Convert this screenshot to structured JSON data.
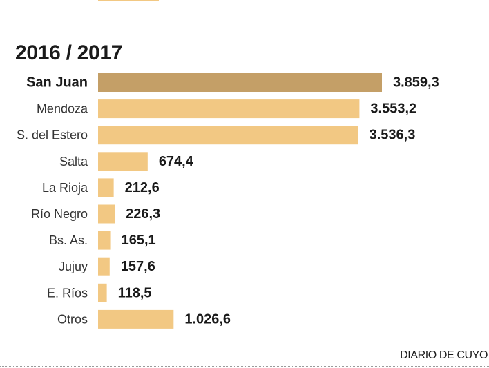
{
  "chart_data": {
    "type": "bar",
    "orientation": "horizontal",
    "title": "2016 / 2017",
    "categories": [
      "San Juan",
      "Mendoza",
      "S. del Estero",
      "Salta",
      "La Rioja",
      "Río Negro",
      "Bs. As.",
      "Jujuy",
      "E. Ríos",
      "Otros"
    ],
    "values": [
      3859.3,
      3553.2,
      3536.3,
      674.4,
      212.6,
      226.3,
      165.1,
      157.6,
      118.5,
      1026.6
    ],
    "value_labels": [
      "3.859,3",
      "3.553,2",
      "3.536,3",
      "674,4",
      "212,6",
      "226,3",
      "165,1",
      "157,6",
      "118,5",
      "1.026,6"
    ],
    "highlight": "San Juan",
    "xlabel": "",
    "ylabel": "",
    "xlim": [
      0,
      3859.3
    ],
    "colors": {
      "default": "#f2c883",
      "highlight": "#c49f67"
    }
  },
  "source": "DIARIO DE CUYO"
}
